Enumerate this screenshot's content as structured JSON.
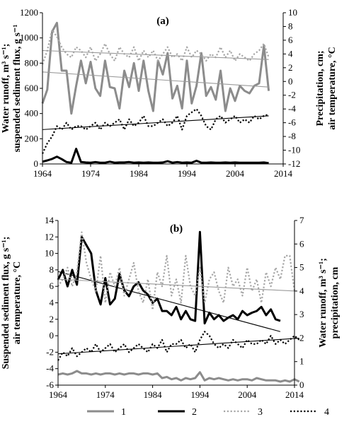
{
  "legend": [
    {
      "label": "1",
      "color": "#8c8c8c",
      "dash": "solid",
      "width": 3
    },
    {
      "label": "2",
      "color": "#000000",
      "dash": "solid",
      "width": 3
    },
    {
      "label": "3",
      "color": "#a6a6a6",
      "dash": "dotted",
      "width": 2.2
    },
    {
      "label": "4",
      "color": "#000000",
      "dash": "dotted",
      "width": 2.2
    }
  ],
  "chart_data": [
    {
      "type": "line",
      "panel_label": "(a)",
      "left_ylabel": [
        "Water runoff, m³ s⁻¹;",
        "suspended sediment flux, g s⁻¹"
      ],
      "right_ylabel": [
        "Precipitation, cm;",
        "air temperature, °C"
      ],
      "xlim": [
        1964,
        2014
      ],
      "xticks": [
        1964,
        1974,
        1984,
        1994,
        2004,
        2014
      ],
      "left_ylim": [
        0,
        1200
      ],
      "left_yticks": [
        0,
        200,
        400,
        600,
        800,
        1000,
        1200
      ],
      "right_ylim": [
        -12,
        10
      ],
      "right_yticks": [
        -12,
        -10,
        -8,
        -6,
        -4,
        -2,
        0,
        2,
        4,
        6,
        8,
        10
      ],
      "series": [
        {
          "name": "1",
          "axis": "left",
          "x": [
            1964,
            1965,
            1966,
            1967,
            1968,
            1969,
            1970,
            1971,
            1972,
            1973,
            1974,
            1975,
            1976,
            1977,
            1978,
            1979,
            1980,
            1981,
            1982,
            1983,
            1984,
            1985,
            1986,
            1987,
            1988,
            1989,
            1990,
            1991,
            1992,
            1993,
            1994,
            1995,
            1996,
            1997,
            1998,
            1999,
            2000,
            2001,
            2002,
            2003,
            2004,
            2005,
            2006,
            2007,
            2008,
            2009,
            2010,
            2011
          ],
          "y": [
            480,
            590,
            1050,
            1120,
            740,
            740,
            400,
            620,
            820,
            640,
            810,
            600,
            540,
            820,
            610,
            600,
            440,
            740,
            610,
            800,
            580,
            820,
            580,
            420,
            820,
            710,
            880,
            520,
            620,
            440,
            820,
            480,
            620,
            880,
            540,
            610,
            510,
            740,
            420,
            600,
            500,
            620,
            580,
            560,
            620,
            640,
            940,
            580
          ],
          "trend": [
            730,
            610
          ]
        },
        {
          "name": "2",
          "axis": "left",
          "x": [
            1964,
            1965,
            1966,
            1967,
            1968,
            1969,
            1970,
            1971,
            1972,
            1973,
            1974,
            1975,
            1976,
            1977,
            1978,
            1979,
            1980,
            1981,
            1982,
            1983,
            1984,
            1985,
            1986,
            1987,
            1988,
            1989,
            1990,
            1991,
            1992,
            1993,
            1994,
            1995,
            1996,
            1997,
            1998,
            1999,
            2000,
            2001,
            2002,
            2003,
            2004,
            2005,
            2006,
            2007,
            2008,
            2009,
            2010,
            2011
          ],
          "y": [
            18,
            28,
            40,
            58,
            38,
            15,
            10,
            120,
            15,
            12,
            10,
            15,
            10,
            10,
            18,
            10,
            12,
            12,
            15,
            10,
            12,
            10,
            12,
            10,
            10,
            12,
            22,
            10,
            15,
            10,
            12,
            10,
            25,
            10,
            10,
            12,
            10,
            10,
            12,
            10,
            12,
            10,
            10,
            10,
            10,
            10,
            12,
            6
          ],
          "trend": null
        },
        {
          "name": "3",
          "axis": "right",
          "x": [
            1964,
            1965,
            1966,
            1967,
            1968,
            1969,
            1970,
            1971,
            1972,
            1973,
            1974,
            1975,
            1976,
            1977,
            1978,
            1979,
            1980,
            1981,
            1982,
            1983,
            1984,
            1985,
            1986,
            1987,
            1988,
            1989,
            1990,
            1991,
            1992,
            1993,
            1994,
            1995,
            1996,
            1997,
            1998,
            1999,
            2000,
            2001,
            2002,
            2003,
            2004,
            2005,
            2006,
            2007,
            2008,
            2009,
            2010,
            2011
          ],
          "y": [
            2.5,
            4.5,
            7.5,
            6.5,
            5,
            4,
            3.5,
            5,
            4.5,
            3.5,
            5,
            3,
            4,
            5.5,
            4,
            3,
            5,
            4,
            3.5,
            5,
            3,
            4.5,
            3.5,
            4.5,
            3,
            4,
            5,
            3.5,
            4,
            3,
            5,
            3.5,
            4.5,
            4,
            3,
            4,
            3.5,
            5,
            3.5,
            4.5,
            3,
            4,
            3.5,
            3,
            4,
            4.5,
            5.5,
            3.5
          ],
          "trend": [
            4.5,
            3.2
          ]
        },
        {
          "name": "4",
          "axis": "right",
          "x": [
            1964,
            1965,
            1966,
            1967,
            1968,
            1969,
            1970,
            1971,
            1972,
            1973,
            1974,
            1975,
            1976,
            1977,
            1978,
            1979,
            1980,
            1981,
            1982,
            1983,
            1984,
            1985,
            1986,
            1987,
            1988,
            1989,
            1990,
            1991,
            1992,
            1993,
            1994,
            1995,
            1996,
            1997,
            1998,
            1999,
            2000,
            2001,
            2002,
            2003,
            2004,
            2005,
            2006,
            2007,
            2008,
            2009,
            2010,
            2011
          ],
          "y": [
            -10.5,
            -9,
            -8,
            -6.5,
            -7,
            -6,
            -7,
            -6.5,
            -6.5,
            -7,
            -6.5,
            -6,
            -7,
            -6,
            -6.5,
            -6,
            -5.5,
            -7,
            -5.5,
            -6.5,
            -6,
            -5,
            -6.5,
            -6.5,
            -6,
            -5.5,
            -6.5,
            -6,
            -5,
            -7,
            -5,
            -4.5,
            -4,
            -5,
            -6.5,
            -7,
            -5.5,
            -5,
            -6,
            -5.5,
            -5,
            -6,
            -5.5,
            -6,
            -5,
            -5.5,
            -5,
            -4.8
          ],
          "trend": [
            -7,
            -5
          ]
        }
      ]
    },
    {
      "type": "line",
      "panel_label": "(b)",
      "left_ylabel": [
        "Suspended sediment flux, g s⁻¹;",
        "air temperature, °C"
      ],
      "right_ylabel": [
        "Water runoff, m³ s⁻¹;",
        "precipitation, cm"
      ],
      "xlim": [
        1964,
        2014
      ],
      "xticks": [
        1964,
        1974,
        1984,
        1994,
        2004,
        2014
      ],
      "left_ylim": [
        -6,
        14
      ],
      "left_yticks": [
        -6,
        -4,
        -2,
        0,
        2,
        4,
        6,
        8,
        10,
        12,
        14
      ],
      "right_ylim": [
        0,
        7
      ],
      "right_yticks": [
        0,
        1,
        2,
        3,
        4,
        5,
        6,
        7
      ],
      "series": [
        {
          "name": "1",
          "axis": "right",
          "x": [
            1964,
            1965,
            1966,
            1967,
            1968,
            1969,
            1970,
            1971,
            1972,
            1973,
            1974,
            1975,
            1976,
            1977,
            1978,
            1979,
            1980,
            1981,
            1982,
            1983,
            1984,
            1985,
            1986,
            1987,
            1988,
            1989,
            1990,
            1991,
            1992,
            1993,
            1994,
            1995,
            1996,
            1997,
            1998,
            1999,
            2000,
            2001,
            2002,
            2003,
            2004,
            2005,
            2006,
            2007,
            2008,
            2009,
            2010,
            2011,
            2012,
            2013,
            2014,
            2015
          ],
          "y": [
            0.45,
            0.5,
            0.45,
            0.5,
            0.6,
            0.5,
            0.5,
            0.45,
            0.5,
            0.45,
            0.5,
            0.5,
            0.45,
            0.5,
            0.45,
            0.5,
            0.5,
            0.45,
            0.5,
            0.5,
            0.45,
            0.5,
            0.3,
            0.35,
            0.25,
            0.3,
            0.2,
            0.3,
            0.25,
            0.3,
            0.55,
            0.2,
            0.3,
            0.25,
            0.3,
            0.25,
            0.2,
            0.25,
            0.2,
            0.25,
            0.25,
            0.2,
            0.3,
            0.25,
            0.2,
            0.2,
            0.2,
            0.15,
            0.2,
            0.15,
            0.25,
            0.15
          ],
          "trend": null
        },
        {
          "name": "2",
          "axis": "left",
          "x": [
            1964,
            1965,
            1966,
            1967,
            1968,
            1969,
            1970,
            1971,
            1972,
            1973,
            1974,
            1975,
            1976,
            1977,
            1978,
            1979,
            1980,
            1981,
            1982,
            1983,
            1984,
            1985,
            1986,
            1987,
            1988,
            1989,
            1990,
            1991,
            1992,
            1993,
            1994,
            1995,
            1996,
            1997,
            1998,
            1999,
            2000,
            2001,
            2002,
            2003,
            2004,
            2005,
            2006,
            2007,
            2008,
            2009,
            2010,
            2011
          ],
          "y": [
            6.8,
            8,
            6,
            8,
            6.2,
            12,
            11,
            10,
            5.5,
            3.8,
            7,
            3.8,
            4.5,
            7.5,
            5.5,
            4.8,
            6,
            6.5,
            5.5,
            5,
            4,
            4.5,
            3,
            3,
            2.5,
            3.5,
            2,
            3,
            2,
            1.8,
            12.6,
            1.5,
            2.8,
            2,
            2.5,
            1.8,
            2.2,
            2.5,
            2,
            3,
            2.5,
            2.8,
            3,
            3.5,
            2.5,
            3.2,
            2,
            1.8
          ],
          "trend": [
            7.8,
            0.5
          ]
        },
        {
          "name": "3",
          "axis": "right",
          "x": [
            1964,
            1965,
            1966,
            1967,
            1968,
            1969,
            1970,
            1971,
            1972,
            1973,
            1974,
            1975,
            1976,
            1977,
            1978,
            1979,
            1980,
            1981,
            1982,
            1983,
            1984,
            1985,
            1986,
            1987,
            1988,
            1989,
            1990,
            1991,
            1992,
            1993,
            1994,
            1995,
            1996,
            1997,
            1998,
            1999,
            2000,
            2001,
            2002,
            2003,
            2004,
            2005,
            2006,
            2007,
            2008,
            2009,
            2010,
            2011,
            2012,
            2013,
            2014
          ],
          "y": [
            4.2,
            4.5,
            5,
            4.2,
            4.8,
            6.5,
            5.2,
            4.5,
            4,
            5.5,
            3.5,
            4.8,
            4.2,
            5,
            3.8,
            4.5,
            5.2,
            4,
            3.5,
            4.5,
            3.2,
            4.8,
            4.2,
            5.5,
            3.8,
            4.5,
            3.5,
            5.5,
            4.2,
            3.8,
            5,
            3.5,
            4.5,
            4.8,
            4,
            3.5,
            5,
            4.2,
            4.5,
            3.8,
            5,
            4,
            4.5,
            3.5,
            4.8,
            4.2,
            5,
            4.5,
            5.5,
            5.5,
            4
          ],
          "trend": [
            4.5,
            4.0
          ]
        },
        {
          "name": "4",
          "axis": "left",
          "x": [
            1964,
            1965,
            1966,
            1967,
            1968,
            1969,
            1970,
            1971,
            1972,
            1973,
            1974,
            1975,
            1976,
            1977,
            1978,
            1979,
            1980,
            1981,
            1982,
            1983,
            1984,
            1985,
            1986,
            1987,
            1988,
            1989,
            1990,
            1991,
            1992,
            1993,
            1994,
            1995,
            1996,
            1997,
            1998,
            1999,
            2000,
            2001,
            2002,
            2003,
            2004,
            2005,
            2006,
            2007,
            2008,
            2009,
            2010,
            2011,
            2012,
            2013,
            2014,
            2015
          ],
          "y": [
            -3,
            -2,
            -2.5,
            -1.5,
            -2.5,
            -2,
            -1.5,
            -2,
            -1,
            -2,
            -1.5,
            -1,
            -2,
            -1.5,
            -1,
            -2,
            -1.5,
            -1,
            -1.5,
            -2,
            -1,
            -1.5,
            -0.5,
            -2,
            -1,
            -1,
            -0.5,
            -1.5,
            -1,
            -2,
            -0.5,
            0.5,
            0,
            -1,
            -1.5,
            -1,
            -1.5,
            -0.5,
            -1,
            -1.5,
            -0.5,
            -1,
            -1,
            -0.5,
            -1,
            0,
            -1,
            -0.5,
            -1,
            -0.5,
            0,
            -0.5
          ],
          "trend": [
            -2.2,
            -0.3
          ]
        }
      ]
    }
  ]
}
